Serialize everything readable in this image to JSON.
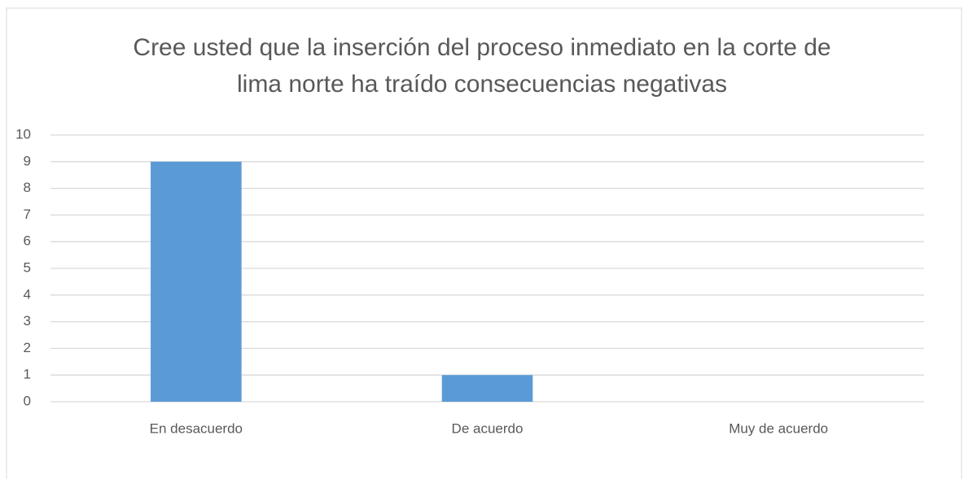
{
  "chart_data": {
    "type": "bar",
    "title": "Cree usted que la inserción del proceso inmediato en la corte de lima norte ha traído consecuencias negativas",
    "categories": [
      "En desacuerdo",
      "De acuerdo",
      "Muy de acuerdo"
    ],
    "values": [
      9,
      1,
      0
    ],
    "color": "#5b9bd5",
    "ylim": [
      0,
      10
    ],
    "yticks": [
      0,
      1,
      2,
      3,
      4,
      5,
      6,
      7,
      8,
      9,
      10
    ],
    "grid": true
  }
}
